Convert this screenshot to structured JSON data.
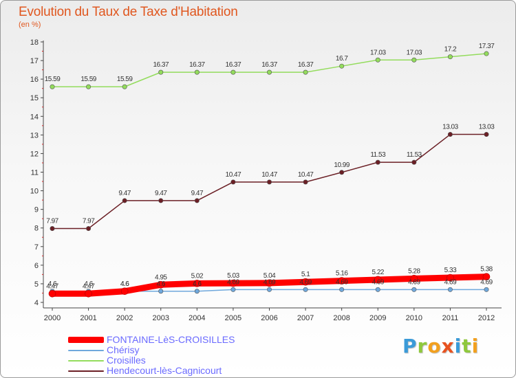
{
  "title": "Evolution du Taux de Taxe d'Habitation",
  "unit": "(en %)",
  "brand": "Proxiti",
  "chart_data": {
    "type": "line",
    "x": [
      2000,
      2001,
      2002,
      2003,
      2004,
      2005,
      2006,
      2007,
      2008,
      2009,
      2010,
      2011,
      2012
    ],
    "ylim": [
      4,
      18
    ],
    "yticks": [
      4,
      5,
      6,
      7,
      8,
      9,
      10,
      11,
      12,
      13,
      14,
      15,
      16,
      17,
      18
    ],
    "grid": false,
    "legend_position": "bottom-left",
    "series": [
      {
        "name": "FONTAINE-LèS-CROISILLES",
        "color": "#ff0000",
        "values": [
          4.47,
          4.47,
          4.6,
          4.95,
          5.02,
          5.03,
          5.04,
          5.1,
          5.16,
          5.22,
          5.28,
          5.33,
          5.38
        ],
        "labels": [
          "4.47",
          "4.47",
          "4.6",
          "4.95",
          "5.02",
          "5.03",
          "5.04",
          "5.1",
          "5.16",
          "5.22",
          "5.28",
          "5.33",
          "5.38"
        ]
      },
      {
        "name": "Chérisy",
        "color": "#6fa8dc",
        "values": [
          4.6,
          4.6,
          4.6,
          4.6,
          4.6,
          4.69,
          4.69,
          4.69,
          4.69,
          4.69,
          4.69,
          4.69,
          4.69
        ],
        "labels": [
          "4.6",
          "4.6",
          "4.6",
          "4.6",
          "4.6",
          "4.69",
          "4.69",
          "4.69",
          "4.69",
          "4.69",
          "4.69",
          "4.69",
          "4.69"
        ]
      },
      {
        "name": "Croisilles",
        "color": "#93dc5c",
        "values": [
          15.59,
          15.59,
          15.59,
          16.37,
          16.37,
          16.37,
          16.37,
          16.37,
          16.7,
          17.03,
          17.03,
          17.2,
          17.37
        ],
        "labels": [
          "15.59",
          "15.59",
          "15.59",
          "16.37",
          "16.37",
          "16.37",
          "16.37",
          "16.37",
          "16.7",
          "17.03",
          "17.03",
          "17.2",
          "17.37"
        ]
      },
      {
        "name": "Hendecourt-lès-Cagnicourt",
        "color": "#6b1f25",
        "values": [
          7.97,
          7.97,
          9.47,
          9.47,
          9.47,
          10.47,
          10.47,
          10.47,
          10.99,
          11.53,
          11.53,
          13.03,
          13.03
        ],
        "labels": [
          "7.97",
          "7.97",
          "9.47",
          "9.47",
          "9.47",
          "10.47",
          "10.47",
          "10.47",
          "10.99",
          "11.53",
          "11.53",
          "13.03",
          "13.03"
        ]
      }
    ]
  }
}
